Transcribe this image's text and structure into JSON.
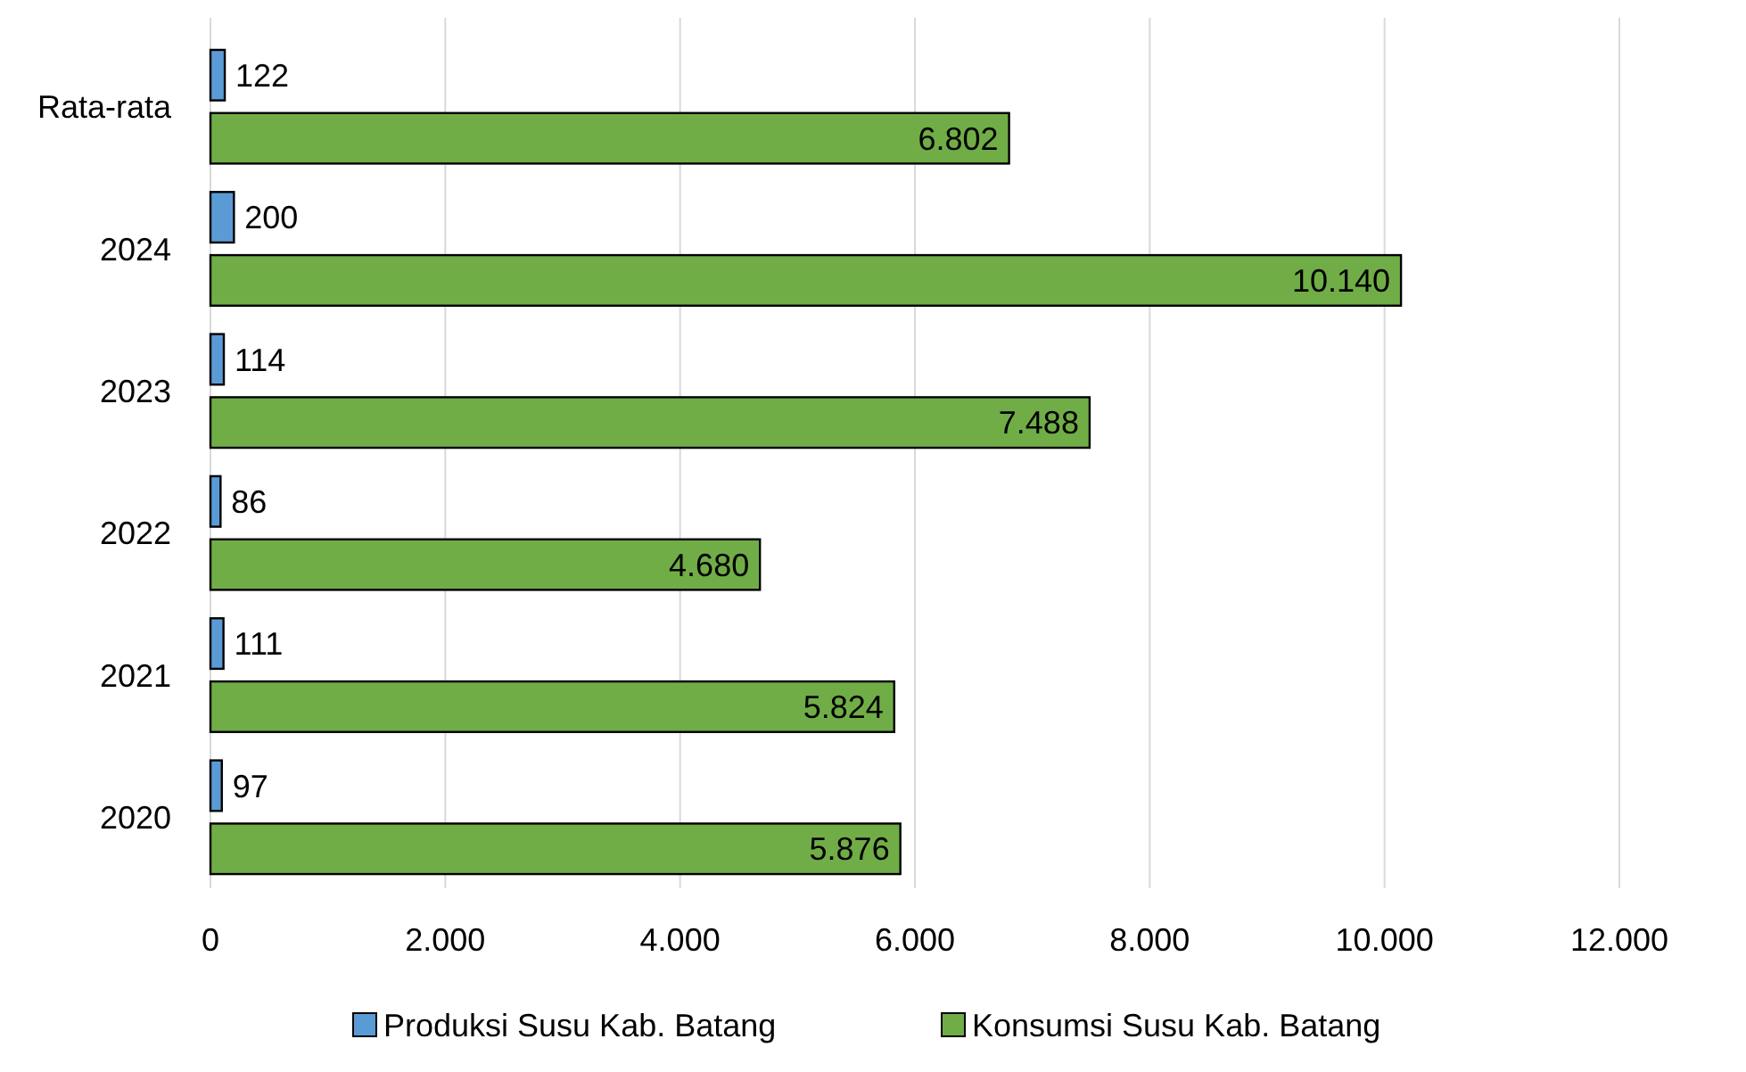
{
  "chart_data": {
    "type": "bar",
    "orientation": "horizontal",
    "categories": [
      "Rata-rata",
      "2024",
      "2023",
      "2022",
      "2021",
      "2020"
    ],
    "series": [
      {
        "name": "Produksi Susu Kab. Batang",
        "color": "#5b9bd5",
        "values": [
          122,
          200,
          114,
          86,
          111,
          97
        ],
        "value_labels": [
          "122",
          "200",
          "114",
          "86",
          "111",
          "97"
        ]
      },
      {
        "name": "Konsumsi Susu Kab. Batang",
        "color": "#70ad47",
        "values": [
          6802,
          10140,
          7488,
          4680,
          5824,
          5876
        ],
        "value_labels": [
          "6.802",
          "10.140",
          "7.488",
          "4.680",
          "5.824",
          "5.876"
        ]
      }
    ],
    "xlim": [
      0,
      12000
    ],
    "xticks": [
      {
        "value": 0,
        "label": "0"
      },
      {
        "value": 2000,
        "label": "2.000"
      },
      {
        "value": 4000,
        "label": "4.000"
      },
      {
        "value": 6000,
        "label": "6.000"
      },
      {
        "value": 8000,
        "label": "8.000"
      },
      {
        "value": 10000,
        "label": "10.000"
      },
      {
        "value": 12000,
        "label": "12.000"
      }
    ],
    "grid": "x",
    "legend": "bottom"
  }
}
